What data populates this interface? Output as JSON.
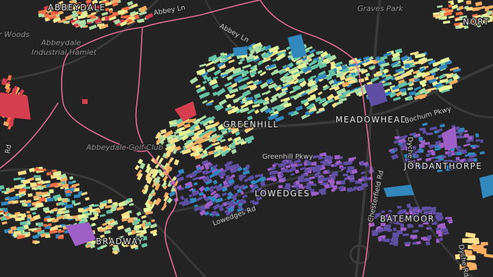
{
  "map": {
    "labels": {
      "abbeydale": "ABBEYDALE",
      "abbey_ln": "Abbey Ln",
      "graves_park": "Graves Park",
      "nort": "NORT",
      "woods": "r Woods",
      "industrial_1": "Abbeydale",
      "industrial_2": "Industrial Hamlet",
      "golf_club": "Abbeydale Golf Club",
      "greenhill": "GREENHILL",
      "greenhill_pkwy": "Greenhill Pkwy",
      "meadowhead": "MEADOWHEAD",
      "bochum_pkwy": "Bochum Pkwy",
      "dyche_ln": "Dyche Ln",
      "jordanthorpe": "JORDANTHORPE",
      "lowedges": "LOWEDGES",
      "lowedges_rd": "Lowedges Rd",
      "chesterfield_rd": "Chesterfield Rd",
      "batemoor": "BATEMOOR",
      "bradway": "BRADWAY",
      "dyche_rd": "Dyche Rd",
      "rd_west": "Rd",
      "abbey_ln_2": "Abbey Ln"
    },
    "colors": {
      "background": "#232323",
      "road": "#3a3a3a",
      "boundary": "#e8709a",
      "label": "#8f8f8f"
    },
    "building_palette": [
      "#d53e4f",
      "#f46d43",
      "#fdae61",
      "#fee08b",
      "#e6f598",
      "#abdda4",
      "#66c2a5",
      "#3288bd",
      "#5e4fa2",
      "#9e5fc7"
    ]
  }
}
